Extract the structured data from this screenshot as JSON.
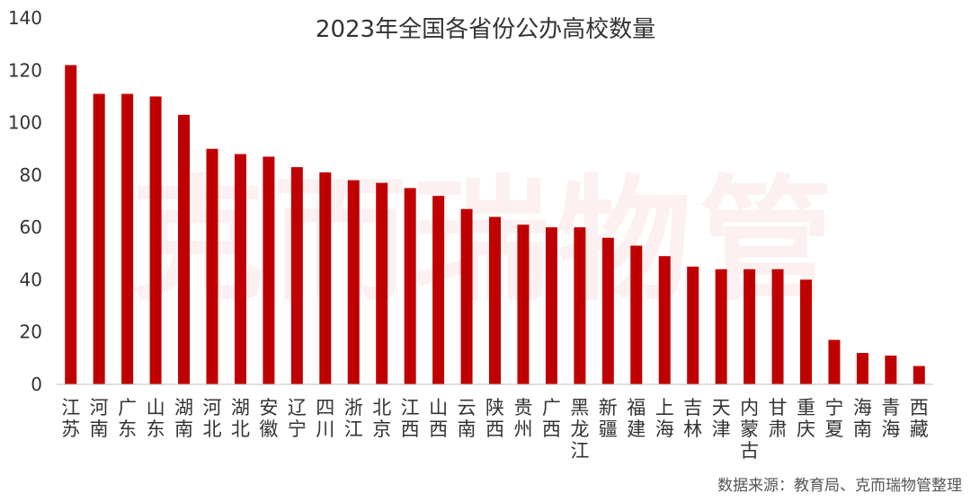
{
  "chart_data": {
    "type": "bar",
    "title": "2023年全国各省份公办高校数量",
    "categories": [
      "江苏",
      "河南",
      "广东",
      "山东",
      "湖南",
      "河北",
      "湖北",
      "安徽",
      "辽宁",
      "四川",
      "浙江",
      "北京",
      "江西",
      "山西",
      "云南",
      "陕西",
      "贵州",
      "广西",
      "黑龙江",
      "新疆",
      "福建",
      "上海",
      "吉林",
      "天津",
      "内蒙古",
      "甘肃",
      "重庆",
      "宁夏",
      "海南",
      "青海",
      "西藏"
    ],
    "values": [
      122,
      111,
      111,
      110,
      103,
      90,
      88,
      87,
      83,
      81,
      78,
      77,
      75,
      72,
      67,
      64,
      61,
      60,
      60,
      56,
      53,
      49,
      45,
      44,
      44,
      44,
      40,
      17,
      12,
      11,
      7
    ],
    "yticks": [
      0,
      20,
      40,
      60,
      80,
      100,
      120,
      140
    ],
    "ylim": [
      0,
      140
    ],
    "bar_color": "#c00000",
    "grid": false,
    "source": "数据来源：教育局、克而瑞物管整理",
    "watermark": "克而瑞物管"
  }
}
